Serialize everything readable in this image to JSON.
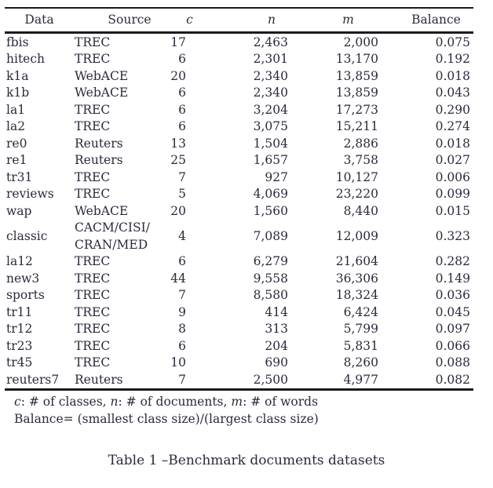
{
  "colors": {
    "text": "#2a2a3c",
    "rule": "#1b1b1b",
    "background": "#ffffff"
  },
  "table": {
    "headers": [
      "Data",
      "Source",
      "c",
      "n",
      "m",
      "Balance"
    ],
    "rows": [
      [
        "fbis",
        "TREC",
        "17",
        "2,463",
        "2,000",
        "0.075"
      ],
      [
        "hitech",
        "TREC",
        "6",
        "2,301",
        "13,170",
        "0.192"
      ],
      [
        "k1a",
        "WebACE",
        "20",
        "2,340",
        "13,859",
        "0.018"
      ],
      [
        "k1b",
        "WebACE",
        "6",
        "2,340",
        "13,859",
        "0.043"
      ],
      [
        "la1",
        "TREC",
        "6",
        "3,204",
        "17,273",
        "0.290"
      ],
      [
        "la2",
        "TREC",
        "6",
        "3,075",
        "15,211",
        "0.274"
      ],
      [
        "re0",
        "Reuters",
        "13",
        "1,504",
        "2,886",
        "0.018"
      ],
      [
        "re1",
        "Reuters",
        "25",
        "1,657",
        "3,758",
        "0.027"
      ],
      [
        "tr31",
        "TREC",
        "7",
        "927",
        "10,127",
        "0.006"
      ],
      [
        "reviews",
        "TREC",
        "5",
        "4,069",
        "23,220",
        "0.099"
      ],
      [
        "wap",
        "WebACE",
        "20",
        "1,560",
        "8,440",
        "0.015"
      ],
      [
        "classic",
        [
          "CACM/CISI/",
          "CRAN/MED"
        ],
        "4",
        "7,089",
        "12,009",
        "0.323"
      ],
      [
        "la12",
        "TREC",
        "6",
        "6,279",
        "21,604",
        "0.282"
      ],
      [
        "new3",
        "TREC",
        "44",
        "9,558",
        "36,306",
        "0.149"
      ],
      [
        "sports",
        "TREC",
        "7",
        "8,580",
        "18,324",
        "0.036"
      ],
      [
        "tr11",
        "TREC",
        "9",
        "414",
        "6,424",
        "0.045"
      ],
      [
        "tr12",
        "TREC",
        "8",
        "313",
        "5,799",
        "0.097"
      ],
      [
        "tr23",
        "TREC",
        "6",
        "204",
        "5,831",
        "0.066"
      ],
      [
        "tr45",
        "TREC",
        "10",
        "690",
        "8,260",
        "0.088"
      ],
      [
        "reuters7",
        "Reuters",
        "7",
        "2,500",
        "4,977",
        "0.082"
      ]
    ]
  },
  "footnotes": {
    "legend_segments": [
      {
        "text": "c",
        "italic": true
      },
      {
        "text": ": # of classes, "
      },
      {
        "text": "n",
        "italic": true
      },
      {
        "text": ": # of documents, "
      },
      {
        "text": "m",
        "italic": true
      },
      {
        "text": ": # of words"
      }
    ],
    "balance_definition": "Balance= (smallest class size)/(largest class size)"
  },
  "caption": "Table 1 –Benchmark documents datasets"
}
